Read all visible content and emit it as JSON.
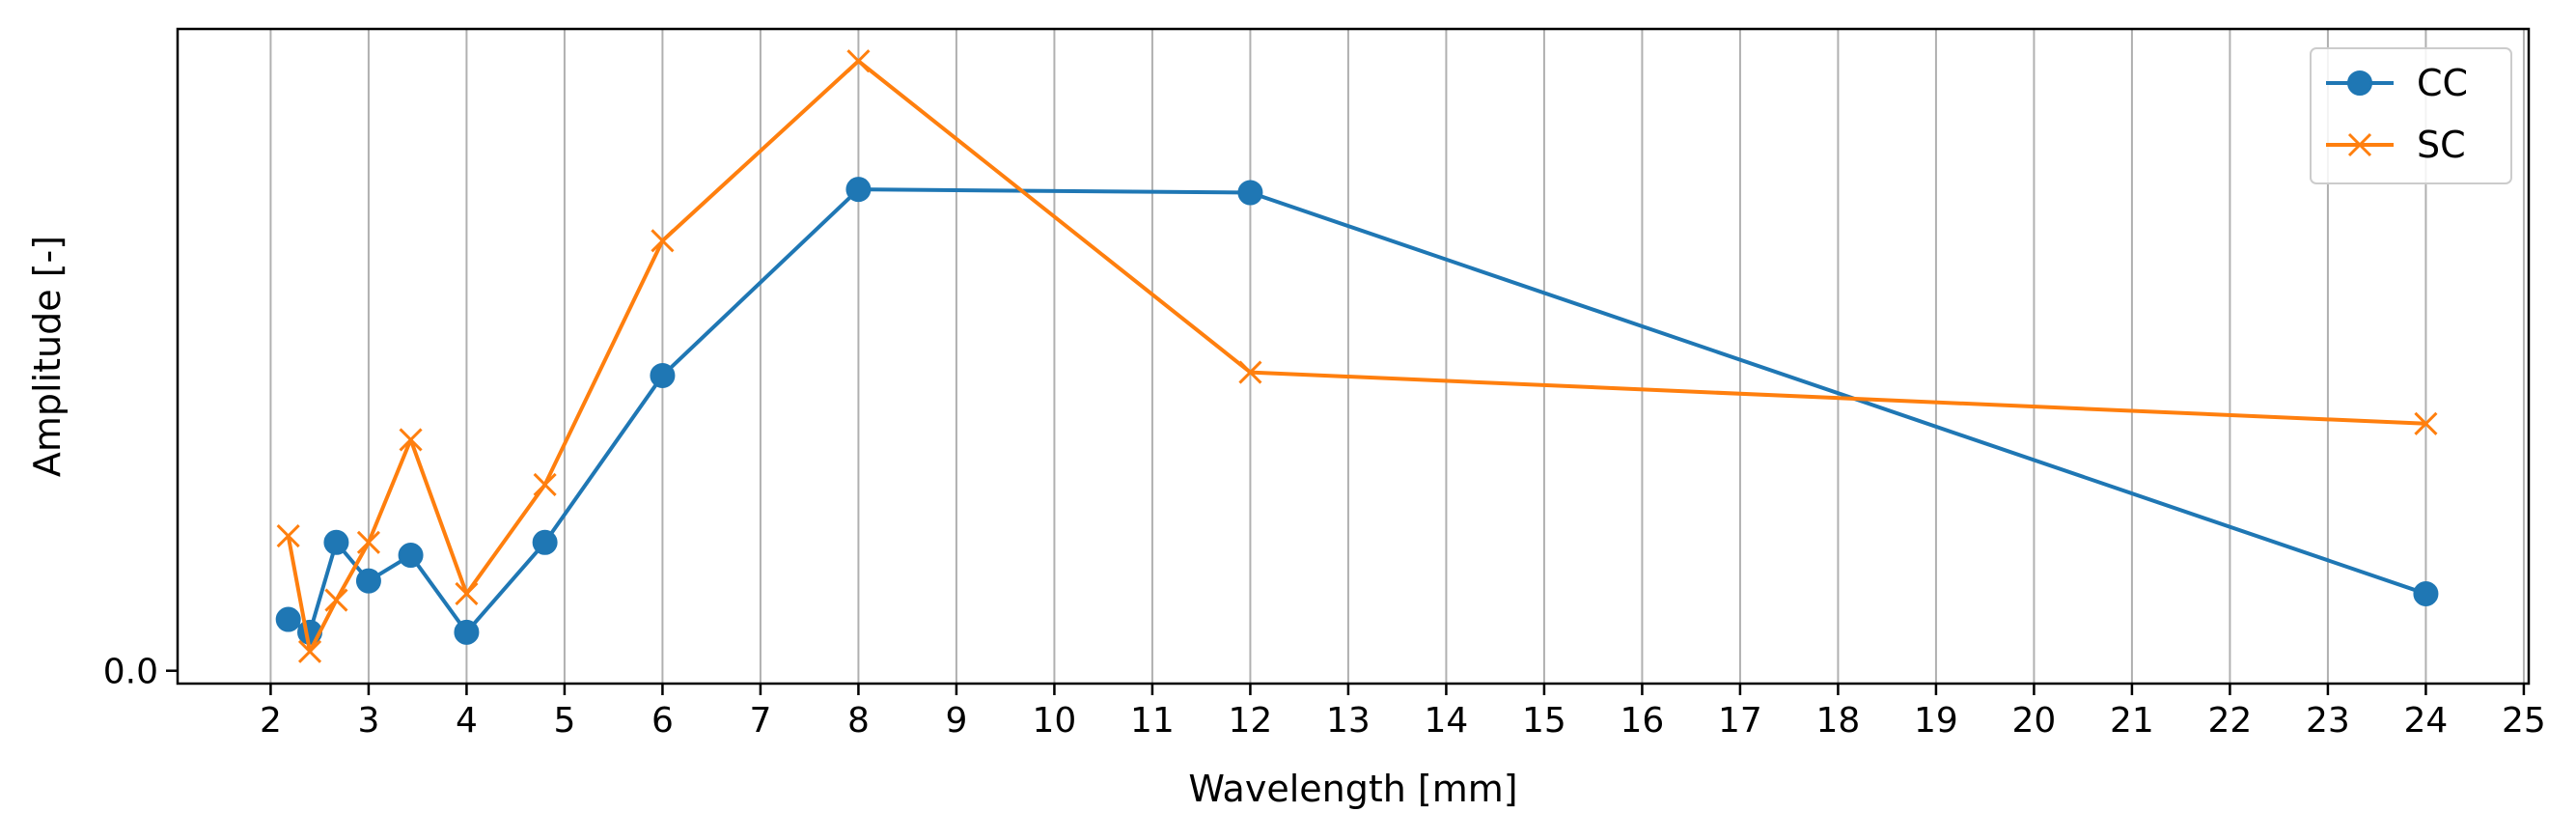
{
  "chart_data": {
    "type": "line",
    "title": "",
    "xlabel": "Wavelength [mm]",
    "ylabel": "Amplitude [-]",
    "xlim": [
      1.05,
      25.05
    ],
    "ylim": [
      -0.02,
      1.0
    ],
    "x_ticks": [
      2,
      3,
      4,
      5,
      6,
      7,
      8,
      9,
      10,
      11,
      12,
      13,
      14,
      15,
      16,
      17,
      18,
      19,
      20,
      21,
      22,
      23,
      24,
      25
    ],
    "x_tick_labels": [
      "2",
      "3",
      "4",
      "5",
      "6",
      "7",
      "8",
      "9",
      "10",
      "11",
      "12",
      "13",
      "14",
      "15",
      "16",
      "17",
      "18",
      "19",
      "20",
      "21",
      "22",
      "23",
      "24",
      "25"
    ],
    "y_ticks": [
      0.0
    ],
    "y_tick_labels": [
      "0.0"
    ],
    "grid": "x",
    "legend": "top-right",
    "series": [
      {
        "name": "CC",
        "color": "#1f77b4",
        "marker": "circle",
        "x": [
          2.18,
          2.4,
          2.67,
          3.0,
          3.43,
          4.0,
          4.8,
          6.0,
          8.0,
          12.0,
          24.0
        ],
        "y": [
          0.08,
          0.06,
          0.2,
          0.14,
          0.18,
          0.06,
          0.2,
          0.46,
          0.75,
          0.745,
          0.12
        ]
      },
      {
        "name": "SC",
        "color": "#ff7f0e",
        "marker": "x",
        "x": [
          2.18,
          2.4,
          2.67,
          3.0,
          3.43,
          4.0,
          4.8,
          6.0,
          8.0,
          12.0,
          24.0
        ],
        "y": [
          0.21,
          0.03,
          0.11,
          0.2,
          0.36,
          0.12,
          0.29,
          0.67,
          0.95,
          0.465,
          0.385
        ]
      }
    ]
  }
}
